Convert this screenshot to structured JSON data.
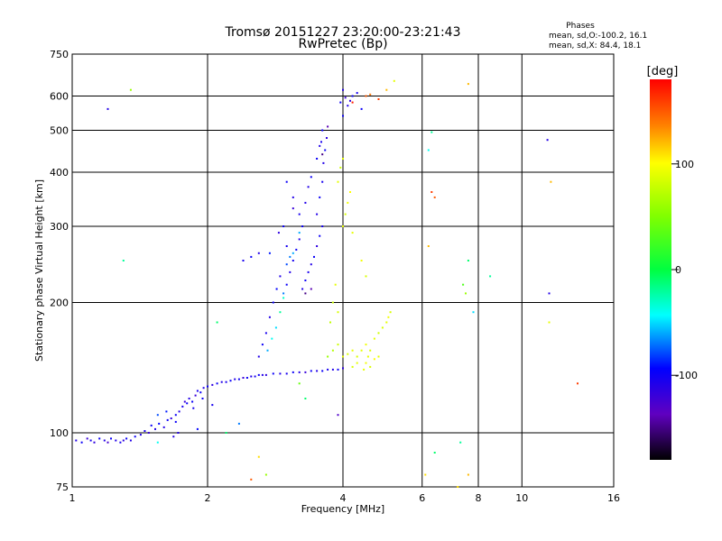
{
  "chart_data": {
    "type": "scatter",
    "title": "Tromsø 20151227 23:20:00-23:21:43",
    "subtitle": "RwPretec (Bp)",
    "xlabel": "Frequency [MHz]",
    "ylabel": "Stationary phase Virtual Height [km]",
    "x_scale": "log2",
    "y_scale": "log",
    "xlim": [
      1,
      16
    ],
    "ylim": [
      75,
      750
    ],
    "x_ticks": [
      1,
      2,
      4,
      6,
      8,
      10,
      16
    ],
    "y_ticks": [
      75,
      100,
      200,
      300,
      400,
      500,
      600,
      750
    ],
    "grid": true,
    "phases_legend": {
      "title": "Phases",
      "line_o": "mean, sd,O:-100.2, 16.1",
      "line_x": "mean, sd,X:  84.4, 18.1"
    },
    "colorbar": {
      "label": "[deg]",
      "range": [
        -180,
        180
      ],
      "ticks": [
        100,
        0,
        -100
      ]
    },
    "series": [
      {
        "points": [
          [
            1.02,
            96,
            -110
          ],
          [
            1.05,
            95,
            -100
          ],
          [
            1.08,
            97,
            -120
          ],
          [
            1.1,
            96,
            -105
          ],
          [
            1.12,
            95,
            -115
          ],
          [
            1.15,
            97,
            -100
          ],
          [
            1.18,
            96,
            -110
          ],
          [
            1.2,
            95,
            -125
          ],
          [
            1.22,
            97,
            -100
          ],
          [
            1.25,
            96,
            -110
          ],
          [
            1.28,
            95,
            -105
          ],
          [
            1.3,
            96,
            -115
          ],
          [
            1.32,
            97,
            -100
          ],
          [
            1.35,
            96,
            -110
          ],
          [
            1.38,
            98,
            -100
          ],
          [
            1.42,
            99,
            -110
          ],
          [
            1.45,
            101,
            -105
          ],
          [
            1.48,
            100,
            -120
          ],
          [
            1.5,
            104,
            -100
          ],
          [
            1.53,
            102,
            -110
          ],
          [
            1.56,
            105,
            -95
          ],
          [
            1.6,
            103,
            -110
          ],
          [
            1.63,
            107,
            -100
          ],
          [
            1.66,
            108,
            -115
          ],
          [
            1.7,
            110,
            -100
          ],
          [
            1.73,
            112,
            -110
          ],
          [
            1.76,
            115,
            -105
          ],
          [
            1.8,
            117,
            -100
          ],
          [
            1.82,
            120,
            -110
          ],
          [
            1.85,
            118,
            -100
          ],
          [
            1.88,
            122,
            -120
          ],
          [
            1.9,
            125,
            -105
          ],
          [
            1.93,
            124,
            -100
          ],
          [
            1.96,
            127,
            -110
          ],
          [
            2.0,
            128,
            -100
          ],
          [
            2.05,
            129,
            -115
          ],
          [
            2.1,
            130,
            -100
          ],
          [
            2.15,
            131,
            -110
          ],
          [
            2.2,
            131,
            -105
          ],
          [
            2.25,
            132,
            -100
          ],
          [
            2.3,
            133,
            -110
          ],
          [
            2.35,
            133,
            -100
          ],
          [
            2.4,
            134,
            -120
          ],
          [
            2.45,
            134,
            -100
          ],
          [
            2.5,
            135,
            -110
          ],
          [
            2.55,
            135,
            -105
          ],
          [
            2.6,
            136,
            -100
          ],
          [
            2.65,
            136,
            -110
          ],
          [
            2.7,
            136,
            -115
          ],
          [
            2.8,
            137,
            -100
          ],
          [
            2.9,
            137,
            -110
          ],
          [
            3.0,
            137,
            -105
          ],
          [
            3.1,
            138,
            -100
          ],
          [
            3.2,
            138,
            -110
          ],
          [
            3.3,
            138,
            -120
          ],
          [
            3.4,
            139,
            -100
          ],
          [
            3.5,
            139,
            -110
          ],
          [
            3.6,
            139,
            -100
          ],
          [
            3.7,
            140,
            -105
          ],
          [
            3.8,
            140,
            -110
          ],
          [
            3.9,
            140,
            -100
          ],
          [
            4.0,
            141,
            -115
          ],
          [
            1.55,
            110,
            -80
          ],
          [
            1.62,
            112,
            -90
          ],
          [
            1.7,
            106,
            -100
          ],
          [
            1.78,
            118,
            -120
          ],
          [
            1.86,
            114,
            -105
          ],
          [
            1.95,
            120,
            -100
          ],
          [
            1.72,
            100,
            -110
          ],
          [
            1.9,
            102,
            -95
          ],
          [
            2.05,
            116,
            -105
          ],
          [
            1.68,
            98,
            -110
          ],
          [
            2.6,
            150,
            -110
          ],
          [
            2.65,
            160,
            -100
          ],
          [
            2.7,
            170,
            -105
          ],
          [
            2.75,
            185,
            -110
          ],
          [
            2.8,
            200,
            -100
          ],
          [
            2.85,
            215,
            -95
          ],
          [
            2.9,
            230,
            -110
          ],
          [
            2.72,
            155,
            -60
          ],
          [
            2.78,
            165,
            -40
          ],
          [
            2.84,
            175,
            -50
          ],
          [
            2.9,
            190,
            -20
          ],
          [
            2.95,
            205,
            -30
          ],
          [
            3.0,
            220,
            -100
          ],
          [
            3.05,
            235,
            -110
          ],
          [
            3.1,
            250,
            -105
          ],
          [
            3.15,
            265,
            -100
          ],
          [
            3.2,
            280,
            -110
          ],
          [
            2.95,
            300,
            -100
          ],
          [
            2.88,
            290,
            -115
          ],
          [
            3.0,
            270,
            -105
          ],
          [
            3.25,
            215,
            -110
          ],
          [
            3.3,
            225,
            -100
          ],
          [
            3.35,
            235,
            -105
          ],
          [
            3.4,
            245,
            -110
          ],
          [
            3.45,
            255,
            -100
          ],
          [
            3.5,
            270,
            -115
          ],
          [
            3.55,
            285,
            -100
          ],
          [
            3.6,
            300,
            -105
          ],
          [
            3.3,
            210,
            -150
          ],
          [
            3.4,
            215,
            -140
          ],
          [
            3.5,
            320,
            -110
          ],
          [
            3.55,
            350,
            -100
          ],
          [
            3.6,
            380,
            -105
          ],
          [
            3.62,
            420,
            -110
          ],
          [
            3.65,
            450,
            -100
          ],
          [
            3.68,
            480,
            -115
          ],
          [
            3.6,
            500,
            -100
          ],
          [
            3.55,
            460,
            -110
          ],
          [
            3.5,
            430,
            -100
          ],
          [
            3.58,
            470,
            -105
          ],
          [
            3.7,
            510,
            -140
          ],
          [
            3.6,
            440,
            -150
          ],
          [
            3.3,
            340,
            -110
          ],
          [
            3.25,
            300,
            -100
          ],
          [
            3.2,
            320,
            -105
          ],
          [
            3.1,
            350,
            -110
          ],
          [
            3.0,
            380,
            -100
          ],
          [
            3.1,
            330,
            -120
          ],
          [
            3.4,
            390,
            -100
          ],
          [
            3.35,
            370,
            -110
          ],
          [
            4.0,
            540,
            -100
          ],
          [
            4.1,
            570,
            -110
          ],
          [
            4.2,
            600,
            -100
          ],
          [
            4.3,
            610,
            -105
          ],
          [
            4.0,
            620,
            -110
          ],
          [
            3.95,
            580,
            -100
          ],
          [
            4.05,
            595,
            -120
          ],
          [
            4.4,
            560,
            -100
          ],
          [
            4.15,
            585,
            -115
          ],
          [
            3.0,
            245,
            -80
          ],
          [
            3.05,
            255,
            -70
          ],
          [
            3.1,
            260,
            -60
          ],
          [
            2.95,
            210,
            -70
          ],
          [
            3.2,
            290,
            -60
          ],
          [
            2.75,
            260,
            -90
          ],
          [
            2.6,
            260,
            -110
          ],
          [
            2.4,
            250,
            -105
          ],
          [
            2.5,
            255,
            -100
          ],
          [
            3.7,
            150,
            60
          ],
          [
            3.8,
            155,
            70
          ],
          [
            3.9,
            160,
            80
          ],
          [
            4.0,
            150,
            90
          ],
          [
            4.1,
            152,
            85
          ],
          [
            4.2,
            155,
            90
          ],
          [
            3.75,
            180,
            75
          ],
          [
            3.8,
            200,
            80
          ],
          [
            3.85,
            220,
            90
          ],
          [
            3.9,
            190,
            85
          ],
          [
            4.3,
            150,
            85
          ],
          [
            4.4,
            155,
            90
          ],
          [
            4.5,
            160,
            95
          ],
          [
            4.6,
            155,
            85
          ],
          [
            4.7,
            165,
            90
          ],
          [
            4.8,
            170,
            80
          ],
          [
            4.9,
            175,
            85
          ],
          [
            5.0,
            180,
            90
          ],
          [
            5.05,
            185,
            95
          ],
          [
            5.1,
            190,
            85
          ],
          [
            4.0,
            300,
            90
          ],
          [
            4.05,
            320,
            85
          ],
          [
            4.1,
            340,
            95
          ],
          [
            3.9,
            380,
            90
          ],
          [
            3.95,
            410,
            80
          ],
          [
            4.0,
            430,
            90
          ],
          [
            4.15,
            360,
            100
          ],
          [
            4.2,
            290,
            90
          ],
          [
            4.4,
            250,
            95
          ],
          [
            4.5,
            230,
            85
          ],
          [
            4.45,
            140,
            90
          ],
          [
            4.5,
            145,
            95
          ],
          [
            4.55,
            150,
            90
          ],
          [
            4.6,
            142,
            85
          ],
          [
            4.7,
            148,
            100
          ],
          [
            4.8,
            150,
            90
          ],
          [
            4.2,
            142,
            85
          ],
          [
            4.3,
            145,
            90
          ],
          [
            4.6,
            605,
            140
          ],
          [
            4.8,
            590,
            160
          ],
          [
            5.0,
            620,
            120
          ],
          [
            5.2,
            650,
            90
          ],
          [
            4.5,
            600,
            150
          ],
          [
            4.2,
            580,
            170
          ],
          [
            1.35,
            620,
            60
          ],
          [
            1.2,
            560,
            -110
          ],
          [
            1.3,
            250,
            -20
          ],
          [
            1.55,
            95,
            -40
          ],
          [
            2.1,
            180,
            -10
          ],
          [
            2.2,
            100,
            -10
          ],
          [
            2.35,
            105,
            -70
          ],
          [
            2.6,
            88,
            110
          ],
          [
            2.5,
            78,
            150
          ],
          [
            2.7,
            80,
            60
          ],
          [
            3.3,
            120,
            -10
          ],
          [
            3.9,
            110,
            -130
          ],
          [
            3.2,
            130,
            40
          ],
          [
            6.3,
            495,
            -20
          ],
          [
            6.2,
            270,
            120
          ],
          [
            6.4,
            90,
            -10
          ],
          [
            6.1,
            80,
            110
          ],
          [
            6.3,
            360,
            160
          ],
          [
            6.4,
            350,
            150
          ],
          [
            6.2,
            450,
            -40
          ],
          [
            7.6,
            640,
            120
          ],
          [
            7.4,
            220,
            30
          ],
          [
            7.5,
            210,
            60
          ],
          [
            7.3,
            95,
            -20
          ],
          [
            7.6,
            250,
            -10
          ],
          [
            7.6,
            80,
            120
          ],
          [
            7.2,
            75,
            110
          ],
          [
            8.5,
            230,
            -20
          ],
          [
            7.8,
            190,
            -50
          ],
          [
            11.5,
            210,
            -110
          ],
          [
            11.5,
            180,
            90
          ],
          [
            11.4,
            475,
            -110
          ],
          [
            11.6,
            380,
            120
          ],
          [
            13.3,
            130,
            160
          ]
        ]
      }
    ]
  }
}
